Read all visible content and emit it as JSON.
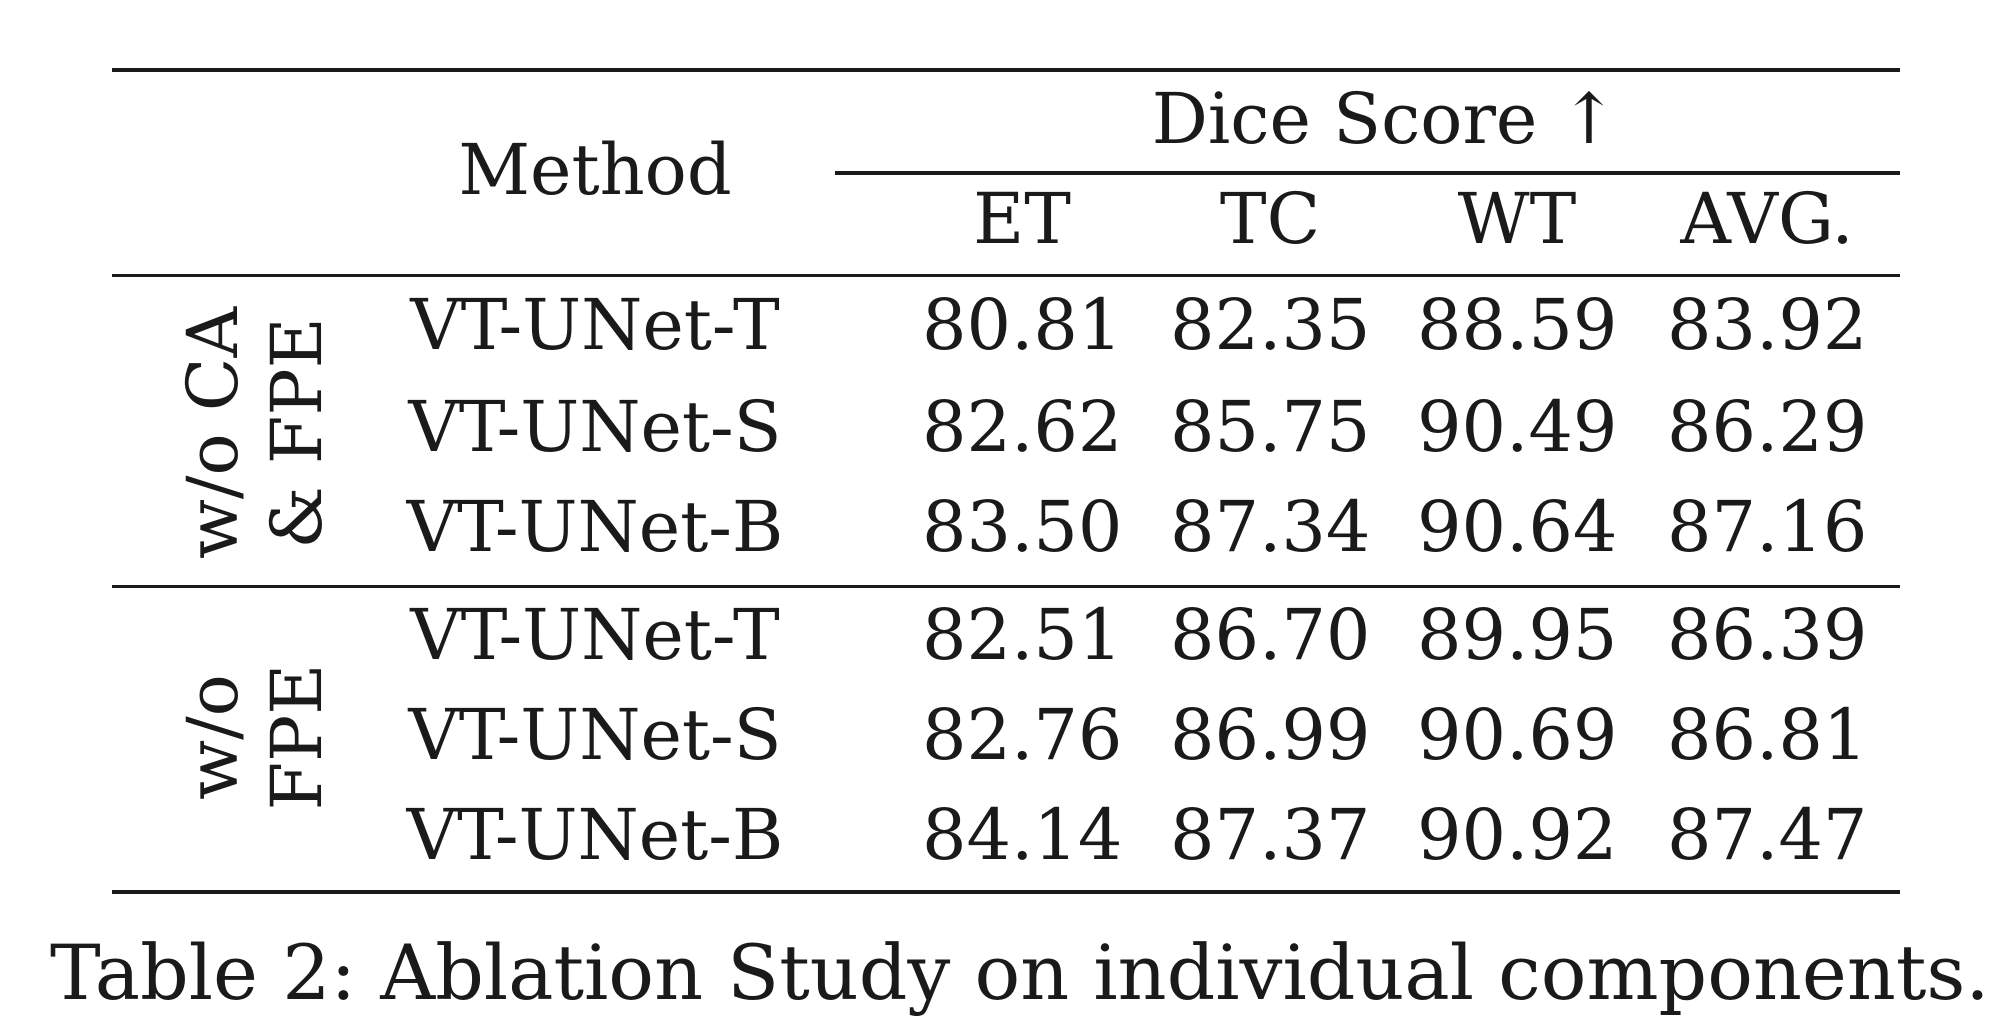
{
  "table": {
    "header": {
      "method": "Method",
      "metric_group": "Dice Score ↑",
      "columns": [
        "ET",
        "TC",
        "WT",
        "AVG."
      ]
    },
    "groups": [
      {
        "label_line1": "w/o CA",
        "label_line2": "& FPE",
        "rows": [
          {
            "method": "VT-UNet-T",
            "values": [
              "80.81",
              "82.35",
              "88.59",
              "83.92"
            ]
          },
          {
            "method": "VT-UNet-S",
            "values": [
              "82.62",
              "85.75",
              "90.49",
              "86.29"
            ]
          },
          {
            "method": "VT-UNet-B",
            "values": [
              "83.50",
              "87.34",
              "90.64",
              "87.16"
            ]
          }
        ]
      },
      {
        "label_line1": "w/o",
        "label_line2": "FPE",
        "rows": [
          {
            "method": "VT-UNet-T",
            "values": [
              "82.51",
              "86.70",
              "89.95",
              "86.39"
            ]
          },
          {
            "method": "VT-UNet-S",
            "values": [
              "82.76",
              "86.99",
              "90.69",
              "86.81"
            ]
          },
          {
            "method": "VT-UNet-B",
            "values": [
              "84.14",
              "87.37",
              "90.92",
              "87.47"
            ]
          }
        ]
      }
    ]
  },
  "caption": "Table 2: Ablation Study on individual components."
}
